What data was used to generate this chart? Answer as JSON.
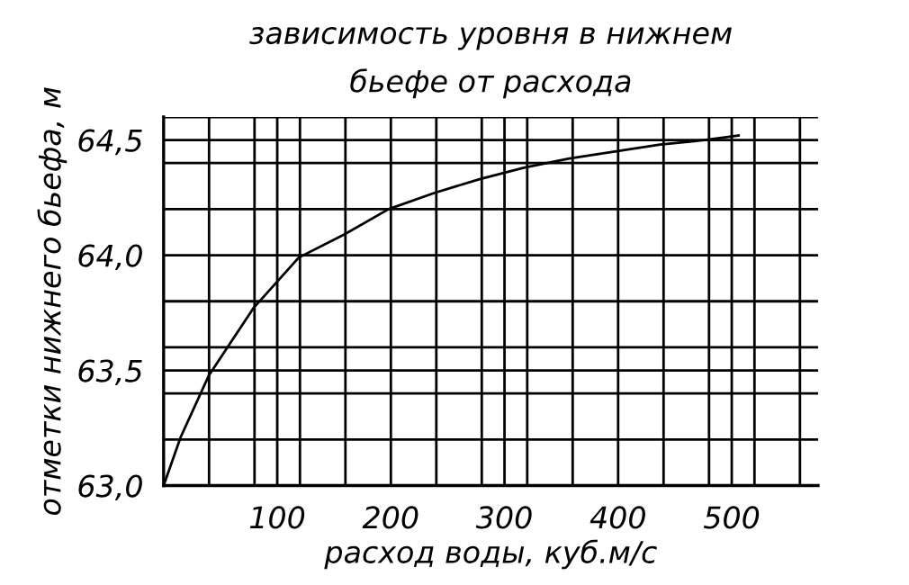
{
  "chart_data": {
    "type": "line",
    "title": "зависимость уровня в нижнем\nбьефе от расхода",
    "xlabel": "расход воды, куб.м/с",
    "ylabel": "отметки нижнего бьефа, м",
    "x": [
      0,
      15,
      40,
      79,
      119,
      159,
      198,
      238,
      278,
      317,
      357,
      397,
      437,
      476,
      506
    ],
    "series": [
      {
        "color": "#000000",
        "values": [
          63.0,
          63.21,
          63.48,
          63.77,
          63.99,
          64.09,
          64.2,
          64.27,
          64.33,
          64.38,
          64.42,
          64.45,
          64.48,
          64.5,
          64.52
        ]
      }
    ],
    "xlim": [
      0,
      576
    ],
    "ylim": [
      63.0,
      64.6
    ],
    "xticks": [
      {
        "value": 40,
        "label": null
      },
      {
        "value": 80,
        "label": null
      },
      {
        "value": 100,
        "label": "100"
      },
      {
        "value": 120,
        "label": null
      },
      {
        "value": 160,
        "label": null
      },
      {
        "value": 200,
        "label": "200"
      },
      {
        "value": 240,
        "label": null
      },
      {
        "value": 280,
        "label": null
      },
      {
        "value": 300,
        "label": "300"
      },
      {
        "value": 320,
        "label": null
      },
      {
        "value": 360,
        "label": null
      },
      {
        "value": 400,
        "label": "400"
      },
      {
        "value": 440,
        "label": null
      },
      {
        "value": 480,
        "label": null
      },
      {
        "value": 500,
        "label": "500"
      },
      {
        "value": 520,
        "label": null
      },
      {
        "value": 560,
        "label": null
      }
    ],
    "yticks": [
      {
        "value": 63.0,
        "label": "63,0"
      },
      {
        "value": 63.2,
        "label": null
      },
      {
        "value": 63.4,
        "label": null
      },
      {
        "value": 63.5,
        "label": "63,5"
      },
      {
        "value": 63.6,
        "label": null
      },
      {
        "value": 63.8,
        "label": null
      },
      {
        "value": 64.0,
        "label": "64,0"
      },
      {
        "value": 64.2,
        "label": null
      },
      {
        "value": 64.4,
        "label": null
      },
      {
        "value": 64.5,
        "label": "64,5"
      },
      {
        "value": 64.6,
        "label": null
      }
    ],
    "grid": true,
    "marker": "none",
    "line_style": "solid"
  }
}
